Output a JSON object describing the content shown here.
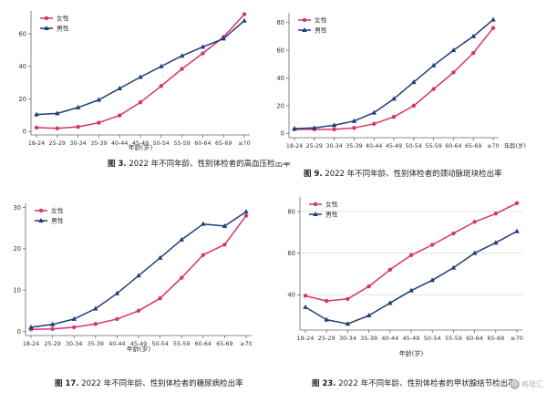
{
  "colors": {
    "female": "#d6336c",
    "male": "#1f3d7a",
    "axis": "#666666",
    "grid": "#d0d0d0"
  },
  "chart_data": [
    {
      "type": "line",
      "title": "2022 年不同年龄、性别体检者的高血压检出率",
      "figure_label": "图 3.",
      "xlabel": "年龄(岁)",
      "ylabel": "",
      "categories": [
        "18-24",
        "25-29",
        "30-34",
        "35-39",
        "40-44",
        "45-49",
        "50-54",
        "55-59",
        "60-64",
        "65-69",
        "≥70"
      ],
      "yticks": [
        0,
        20,
        40,
        60
      ],
      "ylim": [
        -2,
        74
      ],
      "grid": false,
      "legend_position": "top-left",
      "series": [
        {
          "name": "女性",
          "marker": "circle",
          "values": [
            2.5,
            2,
            3,
            5.5,
            10,
            18,
            28,
            38.5,
            48,
            58,
            72
          ]
        },
        {
          "name": "男性",
          "marker": "triangle",
          "values": [
            10.5,
            11.2,
            14.8,
            19.5,
            26.5,
            33.5,
            40,
            46.5,
            52,
            57,
            68
          ]
        }
      ]
    },
    {
      "type": "line",
      "title": "2022 年不同年龄、性别体检者的颈动脉斑块检出率",
      "figure_label": "图 9.",
      "xlabel": "年龄(岁)",
      "ylabel": "",
      "categories": [
        "18-24",
        "25-29",
        "30-34",
        "35-39",
        "40-44",
        "45-49",
        "50-54",
        "55-59",
        "60-64",
        "65-69",
        "≥70"
      ],
      "yticks": [
        0,
        20,
        40,
        60,
        80
      ],
      "ylim": [
        -3,
        87
      ],
      "grid": false,
      "legend_position": "top-left",
      "series": [
        {
          "name": "女性",
          "marker": "circle",
          "values": [
            3,
            3,
            3,
            4,
            7,
            12,
            20,
            32,
            44,
            58,
            76
          ]
        },
        {
          "name": "男性",
          "marker": "triangle",
          "values": [
            3.5,
            4,
            6,
            9,
            15,
            25,
            37,
            49,
            60,
            70,
            82
          ]
        }
      ]
    },
    {
      "type": "line",
      "title": "2022 年不同年龄、性别体检者的糖尿病检出率",
      "figure_label": "图 17.",
      "xlabel": "年龄(岁)",
      "ylabel": "",
      "categories": [
        "18-24",
        "25-29",
        "30-34",
        "35-39",
        "40-44",
        "45-49",
        "50-54",
        "55-59",
        "60-64",
        "65-69",
        "≥70"
      ],
      "yticks": [
        0,
        10,
        20,
        30
      ],
      "ylim": [
        -1,
        31
      ],
      "grid": false,
      "legend_position": "top-left",
      "series": [
        {
          "name": "女性",
          "marker": "circle",
          "values": [
            0.5,
            0.6,
            1,
            1.8,
            3,
            5,
            8,
            13,
            18.5,
            21,
            28
          ]
        },
        {
          "name": "男性",
          "marker": "triangle",
          "values": [
            1,
            1.7,
            3,
            5.5,
            9.2,
            13.5,
            17.8,
            22.2,
            26,
            25.5,
            29
          ]
        }
      ]
    },
    {
      "type": "line",
      "title": "2022 年不同年龄、性别体检者的甲状腺结节检出率",
      "figure_label": "图 23.",
      "xlabel": "年龄(岁)",
      "ylabel": "",
      "categories": [
        "18-24",
        "25-29",
        "30-34",
        "35-39",
        "40-44",
        "45-49",
        "50-54",
        "55-59",
        "60-64",
        "65-69",
        "≥70"
      ],
      "yticks": [
        40,
        60,
        80
      ],
      "ylim": [
        23,
        87
      ],
      "grid": true,
      "legend_position": "top-left",
      "series": [
        {
          "name": "女性",
          "marker": "circle",
          "values": [
            39.5,
            37,
            38,
            44,
            52,
            59,
            64,
            69.5,
            75,
            79,
            84
          ]
        },
        {
          "name": "男性",
          "marker": "triangle",
          "values": [
            34,
            28,
            26,
            30,
            36,
            42,
            47,
            53,
            60,
            65,
            70.5
          ]
        }
      ]
    }
  ],
  "watermark": {
    "text": "格隆汇",
    "logo": "G"
  }
}
